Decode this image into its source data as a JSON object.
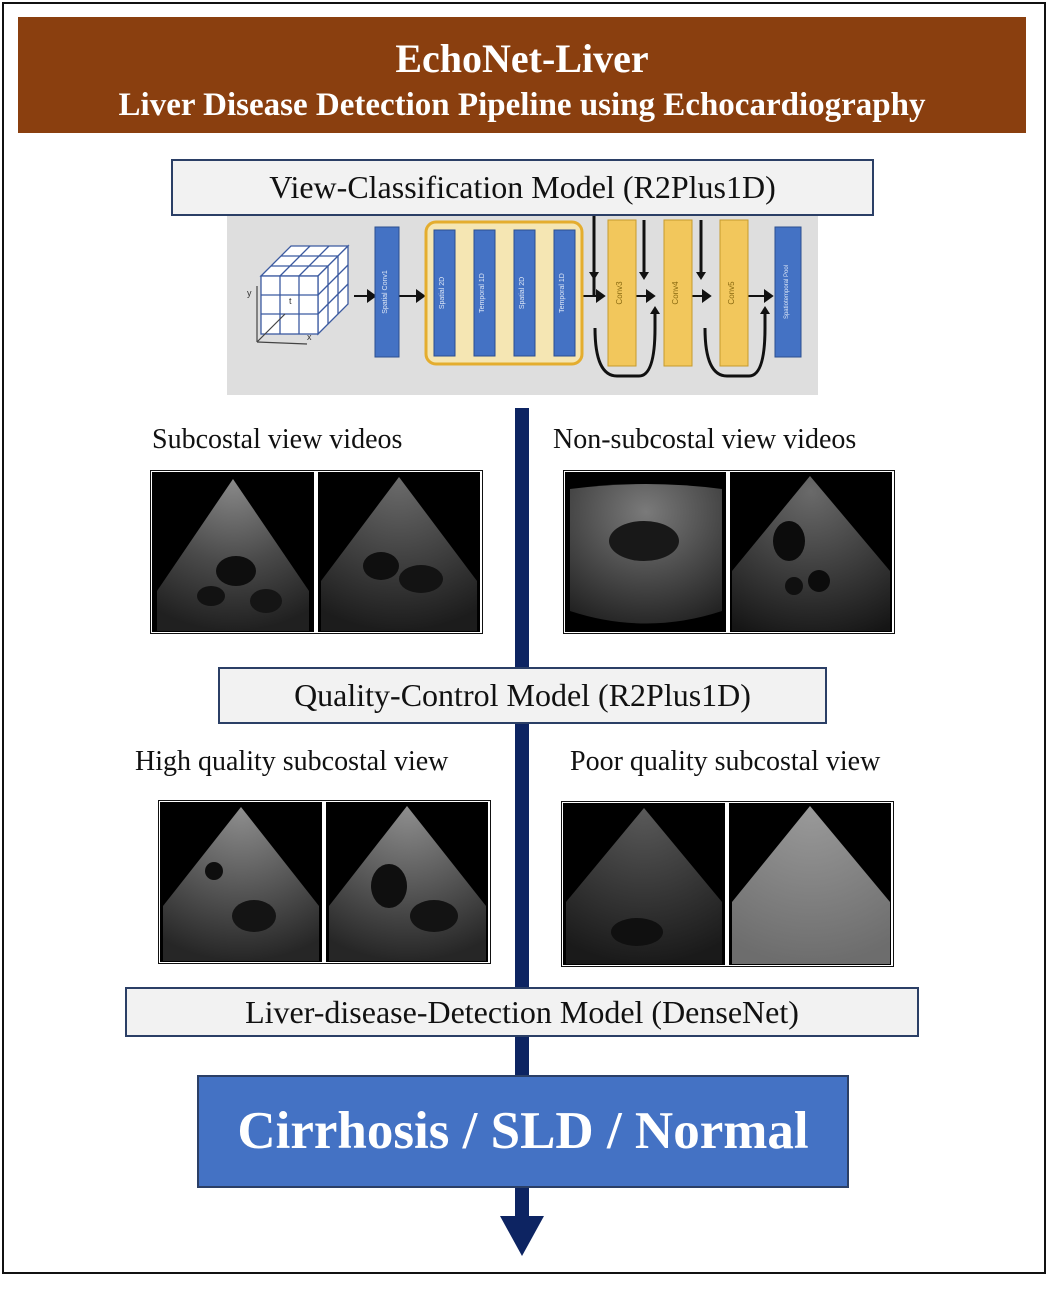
{
  "header": {
    "title": "EchoNet-Liver",
    "subtitle": "Liver Disease Detection Pipeline using Echocardiography"
  },
  "stages": {
    "view_classification": "View-Classification Model (R2Plus1D)",
    "quality_control": "Quality-Control Model (R2Plus1D)",
    "detection": "Liver-disease-Detection Model (DenseNet)"
  },
  "architecture": {
    "blocks": [
      "Spatial Conv1",
      "Spatial 2D",
      "Temporal 1D",
      "Spatial 2D",
      "Temporal 1D",
      "Conv3",
      "Conv4",
      "Conv5",
      "Spatiotemporal Pool"
    ],
    "axes": [
      "y",
      "t",
      "x"
    ]
  },
  "groups": {
    "subcostal": "Subcostal view videos",
    "non_subcostal": "Non-subcostal view videos",
    "high_quality": "High quality subcostal view",
    "poor_quality": "Poor quality subcostal view"
  },
  "result": "Cirrhosis / SLD / Normal",
  "colors": {
    "header": "#8a3f0f",
    "result": "#4472c4",
    "spine": "#0d2462",
    "block_blue": "#4472c4",
    "block_yellow": "#f2c75c"
  }
}
